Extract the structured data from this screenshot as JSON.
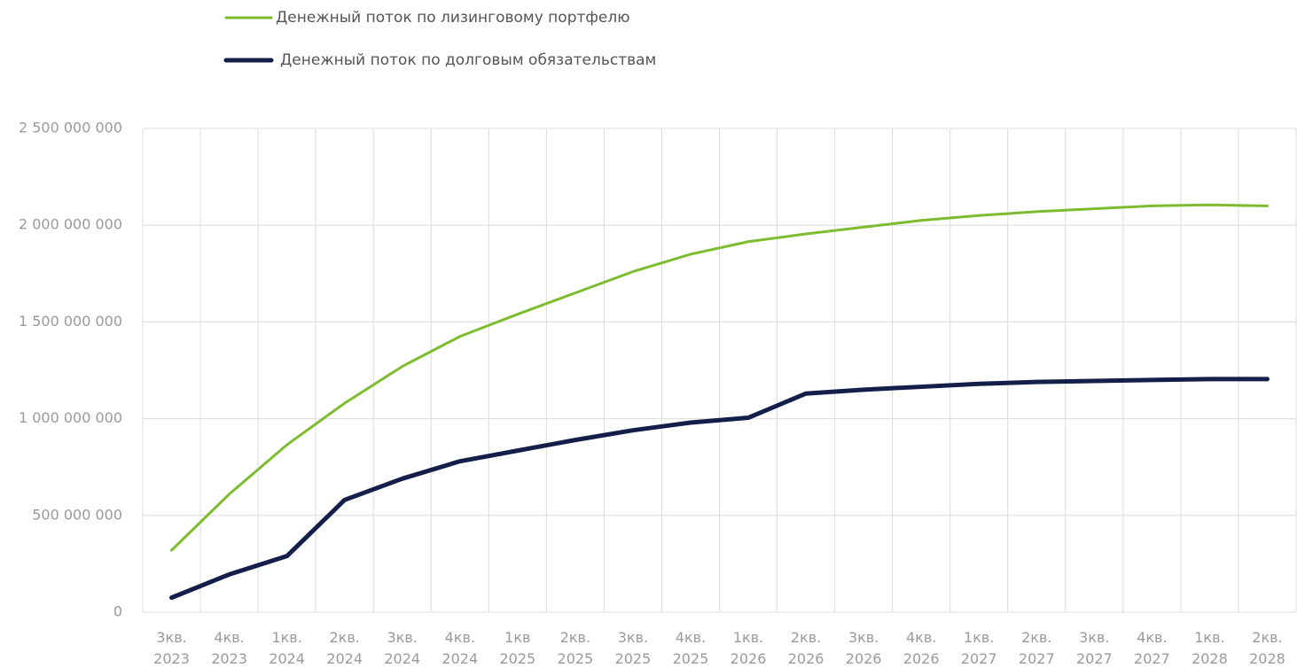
{
  "chart_data": {
    "type": "line",
    "categories": [
      [
        "3кв.",
        "2023"
      ],
      [
        "4кв.",
        "2023"
      ],
      [
        "1кв.",
        "2024"
      ],
      [
        "2кв.",
        "2024"
      ],
      [
        "3кв.",
        "2024"
      ],
      [
        "4кв.",
        "2024"
      ],
      [
        "1кв",
        "2025"
      ],
      [
        "2кв.",
        "2025"
      ],
      [
        "3кв.",
        "2025"
      ],
      [
        "4кв.",
        "2025"
      ],
      [
        "1кв.",
        "2026"
      ],
      [
        "2кв.",
        "2026"
      ],
      [
        "3кв.",
        "2026"
      ],
      [
        "4кв.",
        "2026"
      ],
      [
        "1кв.",
        "2027"
      ],
      [
        "2кв.",
        "2027"
      ],
      [
        "3кв.",
        "2027"
      ],
      [
        "4кв.",
        "2027"
      ],
      [
        "1кв.",
        "2028"
      ],
      [
        "2кв.",
        "2028"
      ]
    ],
    "series": [
      {
        "name": "Денежный поток по лизинговому портфелю",
        "color": "#7dbb2f",
        "width": 3,
        "values": [
          320000000,
          610000000,
          865000000,
          1080000000,
          1270000000,
          1425000000,
          1540000000,
          1650000000,
          1760000000,
          1850000000,
          1915000000,
          1955000000,
          1990000000,
          2025000000,
          2050000000,
          2070000000,
          2085000000,
          2100000000,
          2105000000,
          2100000000
        ]
      },
      {
        "name": "Денежный поток по долговым обязательствам",
        "color": "#131f4a",
        "width": 5,
        "values": [
          75000000,
          195000000,
          290000000,
          580000000,
          690000000,
          780000000,
          835000000,
          890000000,
          940000000,
          980000000,
          1005000000,
          1130000000,
          1150000000,
          1165000000,
          1180000000,
          1190000000,
          1195000000,
          1200000000,
          1205000000,
          1205000000
        ]
      }
    ],
    "ylim": [
      0,
      2500000000
    ],
    "yticks": [
      0,
      {
        "value": 500000000,
        "label": "500 000 000"
      },
      {
        "value": 1000000000,
        "label": "1 000 000 000"
      },
      {
        "value": 1500000000,
        "label": "1 500 000 000"
      },
      {
        "value": 2000000000,
        "label": "2 000 000 000"
      },
      {
        "value": 2500000000,
        "label": "2 500 000 000"
      }
    ],
    "grid": true
  }
}
